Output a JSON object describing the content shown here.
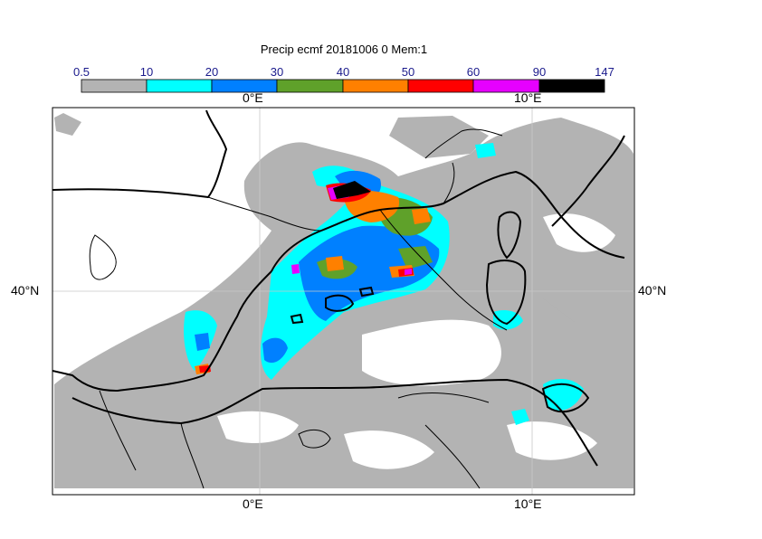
{
  "title": "Precip ecmf 20181006 0 Mem:1",
  "colorbar": {
    "ticks": [
      "0.5",
      "10",
      "20",
      "30",
      "40",
      "50",
      "60",
      "90",
      "147"
    ],
    "colors": [
      "#b3b3b3",
      "#00ffff",
      "#0080ff",
      "#5fa12a",
      "#ff8000",
      "#ff0000",
      "#e600ff",
      "#000000"
    ]
  },
  "axes": {
    "top_lon": [
      "0°E",
      "10°E"
    ],
    "bottom_lon": [
      "0°E",
      "10°E"
    ],
    "left_lat": "40°N",
    "right_lat": "40°N"
  },
  "map": {
    "region": "Western Mediterranean",
    "grid_lines": true
  }
}
